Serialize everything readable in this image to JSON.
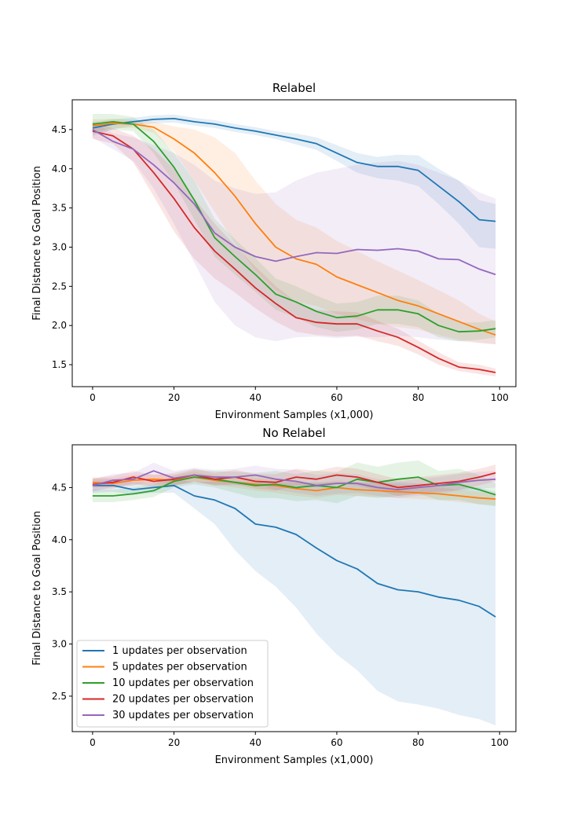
{
  "legend": {
    "placement": "lower-left",
    "entries": [
      {
        "label": "1 updates per observation",
        "color": "#1f77b4"
      },
      {
        "label": "5 updates per observation",
        "color": "#ff7f0e"
      },
      {
        "label": "10 updates per observation",
        "color": "#2ca02c"
      },
      {
        "label": "20 updates per observation",
        "color": "#d62728"
      },
      {
        "label": "30 updates per observation",
        "color": "#9467bd"
      }
    ]
  },
  "chart_data": [
    {
      "type": "line",
      "title": "Relabel",
      "xlabel": "Environment Samples (x1,000)",
      "ylabel": "Final Distance to Goal Position",
      "xlim": [
        -5,
        104
      ],
      "ylim": [
        1.22,
        4.88
      ],
      "xticks": [
        0,
        20,
        40,
        60,
        80,
        100
      ],
      "yticks": [
        1.5,
        2.0,
        2.5,
        3.0,
        3.5,
        4.0,
        4.5
      ],
      "ytick_labels": [
        "1.5",
        "2.0",
        "2.5",
        "3.0",
        "3.5",
        "4.0",
        "4.5"
      ],
      "band_opacity": 0.12,
      "x": [
        0,
        5,
        10,
        15,
        20,
        25,
        30,
        35,
        40,
        45,
        50,
        55,
        60,
        65,
        70,
        75,
        80,
        85,
        90,
        95,
        99
      ],
      "series": [
        {
          "name": "1 updates per observation",
          "color": "#1f77b4",
          "values": [
            4.52,
            4.57,
            4.6,
            4.63,
            4.64,
            4.6,
            4.57,
            4.52,
            4.48,
            4.43,
            4.38,
            4.32,
            4.2,
            4.08,
            4.03,
            4.03,
            3.98,
            3.78,
            3.58,
            3.35,
            3.33
          ],
          "lower": [
            4.42,
            4.5,
            4.55,
            4.58,
            4.59,
            4.55,
            4.52,
            4.47,
            4.43,
            4.38,
            4.31,
            4.24,
            4.1,
            3.95,
            3.88,
            3.85,
            3.78,
            3.55,
            3.3,
            3.0,
            2.98
          ],
          "upper": [
            4.6,
            4.63,
            4.65,
            4.68,
            4.69,
            4.65,
            4.62,
            4.57,
            4.53,
            4.48,
            4.45,
            4.4,
            4.3,
            4.2,
            4.15,
            4.18,
            4.17,
            4.0,
            3.85,
            3.6,
            3.55
          ]
        },
        {
          "name": "5 updates per observation",
          "color": "#ff7f0e",
          "values": [
            4.55,
            4.58,
            4.57,
            4.53,
            4.38,
            4.2,
            3.95,
            3.65,
            3.3,
            3.0,
            2.85,
            2.78,
            2.62,
            2.52,
            2.42,
            2.32,
            2.25,
            2.15,
            2.05,
            1.95,
            1.88
          ],
          "lower": [
            4.47,
            4.52,
            4.52,
            4.46,
            4.22,
            3.85,
            3.45,
            3.05,
            2.7,
            2.45,
            2.3,
            2.25,
            2.15,
            2.08,
            2.02,
            1.98,
            1.95,
            1.88,
            1.82,
            1.78,
            1.76
          ],
          "upper": [
            4.63,
            4.64,
            4.62,
            4.6,
            4.54,
            4.5,
            4.4,
            4.2,
            3.85,
            3.55,
            3.35,
            3.25,
            3.08,
            2.95,
            2.82,
            2.7,
            2.58,
            2.45,
            2.32,
            2.15,
            2.05
          ]
        },
        {
          "name": "10 updates per observation",
          "color": "#2ca02c",
          "values": [
            4.57,
            4.6,
            4.57,
            4.35,
            4.02,
            3.6,
            3.12,
            2.88,
            2.65,
            2.4,
            2.3,
            2.18,
            2.1,
            2.12,
            2.2,
            2.2,
            2.15,
            2.0,
            1.92,
            1.93,
            1.96
          ],
          "lower": [
            4.45,
            4.5,
            4.48,
            4.2,
            3.82,
            3.35,
            2.88,
            2.65,
            2.43,
            2.2,
            2.1,
            1.98,
            1.92,
            1.95,
            2.02,
            2.02,
            1.98,
            1.85,
            1.8,
            1.82,
            1.85
          ],
          "upper": [
            4.7,
            4.7,
            4.66,
            4.5,
            4.2,
            3.85,
            3.36,
            3.1,
            2.86,
            2.6,
            2.5,
            2.38,
            2.28,
            2.3,
            2.38,
            2.38,
            2.32,
            2.15,
            2.04,
            2.04,
            2.07
          ]
        },
        {
          "name": "20 updates per observation",
          "color": "#d62728",
          "values": [
            4.48,
            4.42,
            4.25,
            3.95,
            3.62,
            3.25,
            2.95,
            2.72,
            2.48,
            2.28,
            2.1,
            2.04,
            2.02,
            2.02,
            1.93,
            1.85,
            1.72,
            1.58,
            1.47,
            1.44,
            1.4
          ],
          "lower": [
            4.38,
            4.32,
            4.08,
            3.65,
            3.2,
            2.85,
            2.6,
            2.42,
            2.22,
            2.05,
            1.92,
            1.88,
            1.86,
            1.87,
            1.8,
            1.74,
            1.63,
            1.5,
            1.42,
            1.38,
            1.35
          ],
          "upper": [
            4.58,
            4.52,
            4.42,
            4.25,
            4.0,
            3.62,
            3.3,
            3.02,
            2.75,
            2.5,
            2.3,
            2.2,
            2.18,
            2.17,
            2.06,
            1.96,
            1.81,
            1.66,
            1.53,
            1.5,
            1.45
          ]
        },
        {
          "name": "30 updates per observation",
          "color": "#9467bd",
          "values": [
            4.5,
            4.35,
            4.25,
            4.05,
            3.82,
            3.55,
            3.18,
            3.0,
            2.88,
            2.82,
            2.88,
            2.93,
            2.92,
            2.97,
            2.96,
            2.98,
            2.95,
            2.85,
            2.84,
            2.72,
            2.65
          ],
          "lower": [
            4.4,
            4.25,
            4.1,
            3.75,
            3.3,
            2.8,
            2.3,
            2.0,
            1.85,
            1.8,
            1.85,
            1.86,
            1.84,
            1.86,
            1.85,
            1.87,
            1.85,
            1.82,
            1.8,
            1.78,
            1.76
          ],
          "upper": [
            4.6,
            4.45,
            4.4,
            4.3,
            4.2,
            4.05,
            3.85,
            3.75,
            3.68,
            3.7,
            3.85,
            3.95,
            4.0,
            4.05,
            4.08,
            4.1,
            4.05,
            3.95,
            3.85,
            3.7,
            3.62
          ]
        }
      ]
    },
    {
      "type": "line",
      "title": "No Relabel",
      "xlabel": "Environment Samples (x1,000)",
      "ylabel": "Final Distance to Goal Position",
      "xlim": [
        -5,
        104
      ],
      "ylim": [
        2.16,
        4.91
      ],
      "xticks": [
        0,
        20,
        40,
        60,
        80,
        100
      ],
      "yticks": [
        2.5,
        3.0,
        3.5,
        4.0,
        4.5
      ],
      "ytick_labels": [
        "2.5",
        "3.0",
        "3.5",
        "4.0",
        "4.5"
      ],
      "band_opacity": 0.12,
      "x": [
        0,
        5,
        10,
        15,
        20,
        25,
        30,
        35,
        40,
        45,
        50,
        55,
        60,
        65,
        70,
        75,
        80,
        85,
        90,
        95,
        99
      ],
      "series": [
        {
          "name": "1 updates per observation",
          "color": "#1f77b4",
          "values": [
            4.52,
            4.52,
            4.48,
            4.5,
            4.52,
            4.42,
            4.38,
            4.3,
            4.15,
            4.12,
            4.05,
            3.92,
            3.8,
            3.72,
            3.58,
            3.52,
            3.5,
            3.45,
            3.42,
            3.36,
            3.26
          ],
          "lower": [
            4.45,
            4.46,
            4.43,
            4.45,
            4.45,
            4.3,
            4.15,
            3.9,
            3.7,
            3.55,
            3.35,
            3.1,
            2.9,
            2.75,
            2.55,
            2.45,
            2.42,
            2.38,
            2.32,
            2.28,
            2.22
          ],
          "upper": [
            4.58,
            4.58,
            4.55,
            4.56,
            4.58,
            4.55,
            4.56,
            4.56,
            4.55,
            4.55,
            4.55,
            4.55,
            4.55,
            4.55,
            4.55,
            4.55,
            4.54,
            4.53,
            4.52,
            4.5,
            4.46
          ]
        },
        {
          "name": "5 updates per observation",
          "color": "#ff7f0e",
          "values": [
            4.55,
            4.54,
            4.57,
            4.58,
            4.57,
            4.6,
            4.57,
            4.55,
            4.53,
            4.52,
            4.49,
            4.47,
            4.5,
            4.48,
            4.47,
            4.46,
            4.45,
            4.44,
            4.42,
            4.4,
            4.39
          ],
          "lower": [
            4.5,
            4.5,
            4.52,
            4.53,
            4.52,
            4.55,
            4.52,
            4.5,
            4.47,
            4.45,
            4.42,
            4.4,
            4.43,
            4.42,
            4.41,
            4.4,
            4.39,
            4.38,
            4.36,
            4.34,
            4.33
          ],
          "upper": [
            4.6,
            4.59,
            4.62,
            4.63,
            4.62,
            4.65,
            4.62,
            4.6,
            4.59,
            4.58,
            4.56,
            4.54,
            4.57,
            4.55,
            4.54,
            4.53,
            4.52,
            4.5,
            4.48,
            4.46,
            4.45
          ]
        },
        {
          "name": "10 updates per observation",
          "color": "#2ca02c",
          "values": [
            4.42,
            4.42,
            4.44,
            4.47,
            4.56,
            4.6,
            4.58,
            4.55,
            4.52,
            4.53,
            4.5,
            4.52,
            4.5,
            4.58,
            4.55,
            4.58,
            4.6,
            4.52,
            4.53,
            4.48,
            4.43
          ],
          "lower": [
            4.36,
            4.36,
            4.38,
            4.41,
            4.5,
            4.53,
            4.5,
            4.45,
            4.4,
            4.4,
            4.37,
            4.38,
            4.35,
            4.42,
            4.4,
            4.42,
            4.44,
            4.38,
            4.38,
            4.34,
            4.32
          ],
          "upper": [
            4.48,
            4.48,
            4.5,
            4.53,
            4.62,
            4.67,
            4.66,
            4.65,
            4.64,
            4.66,
            4.63,
            4.66,
            4.65,
            4.74,
            4.7,
            4.74,
            4.76,
            4.66,
            4.68,
            4.62,
            4.54
          ]
        },
        {
          "name": "20 updates per observation",
          "color": "#d62728",
          "values": [
            4.53,
            4.55,
            4.6,
            4.56,
            4.58,
            4.62,
            4.58,
            4.6,
            4.56,
            4.55,
            4.6,
            4.58,
            4.62,
            4.6,
            4.55,
            4.5,
            4.52,
            4.54,
            4.56,
            4.6,
            4.64
          ],
          "lower": [
            4.47,
            4.49,
            4.54,
            4.5,
            4.52,
            4.56,
            4.52,
            4.53,
            4.49,
            4.47,
            4.52,
            4.5,
            4.54,
            4.52,
            4.47,
            4.42,
            4.44,
            4.46,
            4.48,
            4.52,
            4.56
          ],
          "upper": [
            4.59,
            4.61,
            4.66,
            4.62,
            4.64,
            4.68,
            4.64,
            4.67,
            4.63,
            4.63,
            4.68,
            4.66,
            4.7,
            4.68,
            4.63,
            4.58,
            4.6,
            4.62,
            4.64,
            4.68,
            4.72
          ]
        },
        {
          "name": "30 updates per observation",
          "color": "#9467bd",
          "values": [
            4.52,
            4.57,
            4.58,
            4.66,
            4.59,
            4.62,
            4.6,
            4.6,
            4.62,
            4.58,
            4.56,
            4.52,
            4.54,
            4.54,
            4.5,
            4.48,
            4.5,
            4.52,
            4.55,
            4.57,
            4.58
          ],
          "lower": [
            4.46,
            4.51,
            4.52,
            4.58,
            4.52,
            4.55,
            4.53,
            4.52,
            4.53,
            4.48,
            4.45,
            4.42,
            4.44,
            4.45,
            4.42,
            4.4,
            4.42,
            4.44,
            4.47,
            4.49,
            4.5
          ],
          "upper": [
            4.58,
            4.63,
            4.64,
            4.74,
            4.66,
            4.69,
            4.67,
            4.68,
            4.71,
            4.68,
            4.67,
            4.62,
            4.64,
            4.63,
            4.58,
            4.56,
            4.58,
            4.6,
            4.63,
            4.65,
            4.66
          ]
        }
      ]
    }
  ]
}
